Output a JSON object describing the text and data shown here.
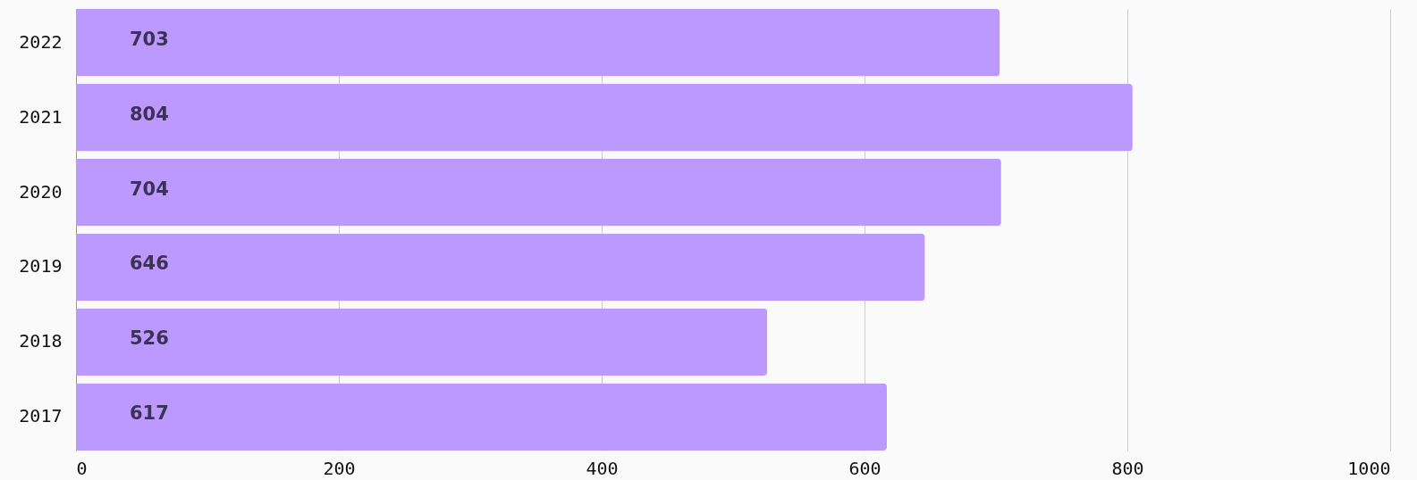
{
  "chart_data": {
    "type": "bar",
    "orientation": "horizontal",
    "categories": [
      "2022",
      "2021",
      "2020",
      "2019",
      "2018",
      "2017"
    ],
    "values": [
      703,
      804,
      704,
      646,
      526,
      617
    ],
    "color": "#bb99ff",
    "xlim": [
      0,
      1000
    ],
    "xticks": [
      0,
      200,
      400,
      600,
      800,
      1000
    ],
    "grid": "x",
    "data_labels": true
  }
}
